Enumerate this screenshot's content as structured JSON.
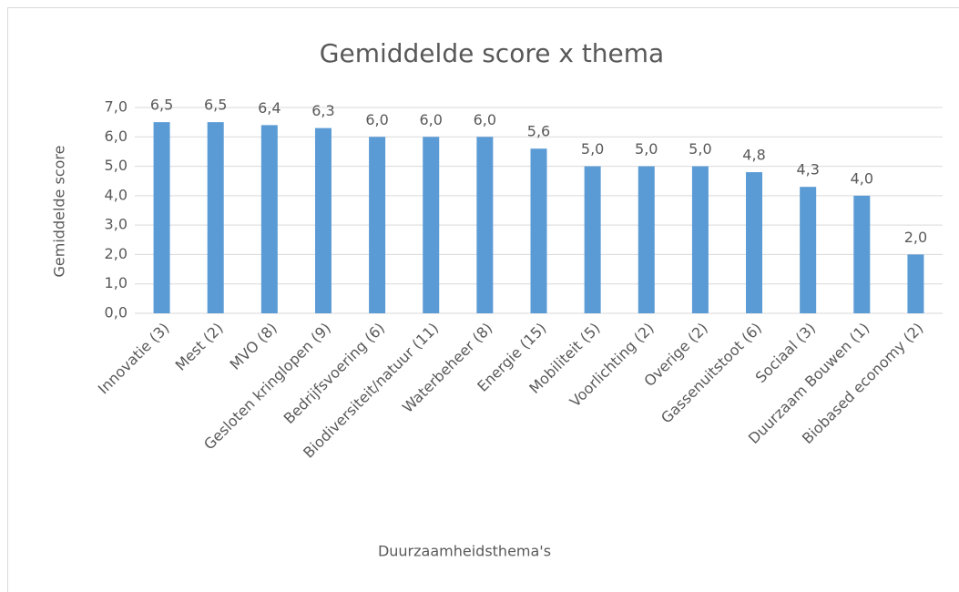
{
  "chart_data": {
    "type": "bar",
    "title": "Gemiddelde score x thema",
    "x_label": "Duurzaamheidsthema's",
    "y_label": "Gemiddelde score",
    "categories": [
      "Innovatie (3)",
      "Mest (2)",
      "MVO (8)",
      "Gesloten kringlopen (9)",
      "Bedrijfsvoering (6)",
      "Biodiversiteit/natuur (11)",
      "Waterbeheer (8)",
      "Energie (15)",
      "Mobiliteit (5)",
      "Voorlichting (2)",
      "Overige (2)",
      "Gassenuitstoot (6)",
      "Sociaal (3)",
      "Duurzaam Bouwen (1)",
      "Biobased economy (2)"
    ],
    "values": [
      6.5,
      6.5,
      6.4,
      6.3,
      6.0,
      6.0,
      6.0,
      5.6,
      5.0,
      5.0,
      5.0,
      4.8,
      4.3,
      4.0,
      2.0
    ],
    "value_labels": [
      "6,5",
      "6,5",
      "6,4",
      "6,3",
      "6,0",
      "6,0",
      "6,0",
      "5,6",
      "5,0",
      "5,0",
      "5,0",
      "4,8",
      "4,3",
      "4,0",
      "2,0"
    ],
    "color": "#5b9bd5",
    "ylim": [
      0,
      7
    ],
    "yticks": [
      {
        "value": 0,
        "label": "0,0"
      },
      {
        "value": 1,
        "label": "1,0"
      },
      {
        "value": 2,
        "label": "2,0"
      },
      {
        "value": 3,
        "label": "3,0"
      },
      {
        "value": 4,
        "label": "4,0"
      },
      {
        "value": 5,
        "label": "5,0"
      },
      {
        "value": 6,
        "label": "6,0"
      },
      {
        "value": 7,
        "label": "7,0"
      }
    ],
    "grid": true
  }
}
